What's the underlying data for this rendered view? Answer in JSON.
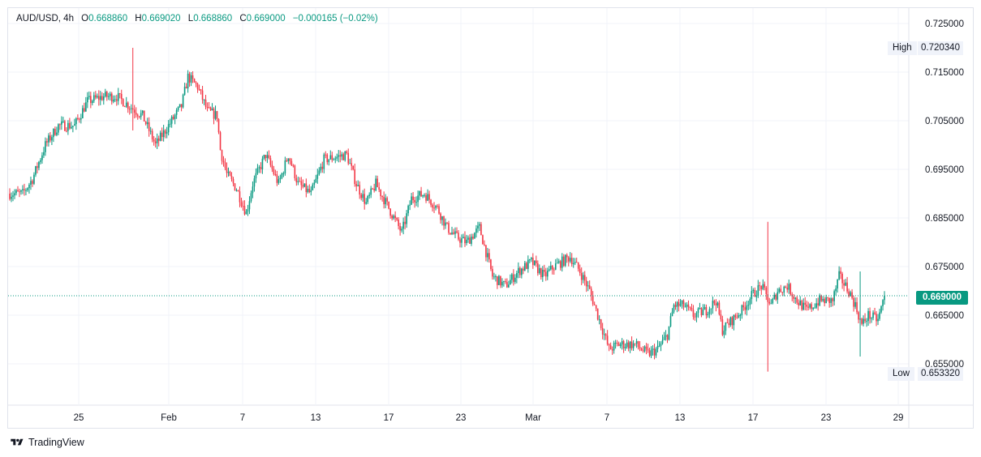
{
  "legend": {
    "symbol": "AUD/USD",
    "interval": "4h",
    "open_label": "O",
    "open": "0.668860",
    "high_label": "H",
    "high": "0.669020",
    "low_label": "L",
    "low": "0.668860",
    "close_label": "C",
    "close": "0.669000",
    "change": "−0.000165 (−0.02%)"
  },
  "price_axis": {
    "ticks": [
      "0.725000",
      "0.715000",
      "0.705000",
      "0.695000",
      "0.685000",
      "0.675000",
      "0.665000",
      "0.655000"
    ],
    "high_label": "High",
    "high_value": "0.720340",
    "low_label": "Low",
    "low_value": "0.653320",
    "last_price": "0.669000"
  },
  "time_axis": {
    "ticks": [
      "25",
      "Feb",
      "7",
      "13",
      "17",
      "23",
      "Mar",
      "7",
      "13",
      "17",
      "23",
      "29"
    ]
  },
  "branding": {
    "name": "TradingView"
  },
  "colors": {
    "up": "#089981",
    "down": "#f23645",
    "grid": "#f0f3fa",
    "last_price_line": "#089981"
  },
  "chart_data": {
    "type": "candlestick",
    "symbol": "AUD/USD",
    "interval": "4h",
    "ylim": [
      0.6508,
      0.7328
    ],
    "x_ticks": [
      "25",
      "Feb",
      "7",
      "13",
      "17",
      "23",
      "Mar",
      "7",
      "13",
      "17",
      "23",
      "29"
    ],
    "close_path": [
      [
        0,
        0.69
      ],
      [
        8,
        0.69
      ],
      [
        14,
        0.693
      ],
      [
        22,
        0.7
      ],
      [
        30,
        0.704
      ],
      [
        40,
        0.704
      ],
      [
        48,
        0.709
      ],
      [
        58,
        0.71
      ],
      [
        66,
        0.71
      ],
      [
        74,
        0.708
      ],
      [
        82,
        0.706
      ],
      [
        90,
        0.7
      ],
      [
        98,
        0.704
      ],
      [
        106,
        0.708
      ],
      [
        110,
        0.714
      ],
      [
        116,
        0.712
      ],
      [
        122,
        0.707
      ],
      [
        128,
        0.706
      ],
      [
        130,
        0.699
      ],
      [
        134,
        0.694
      ],
      [
        140,
        0.691
      ],
      [
        146,
        0.686
      ],
      [
        150,
        0.692
      ],
      [
        158,
        0.698
      ],
      [
        166,
        0.692
      ],
      [
        172,
        0.698
      ],
      [
        178,
        0.692
      ],
      [
        186,
        0.69
      ],
      [
        194,
        0.697
      ],
      [
        208,
        0.698
      ],
      [
        214,
        0.692
      ],
      [
        220,
        0.688
      ],
      [
        226,
        0.692
      ],
      [
        234,
        0.687
      ],
      [
        242,
        0.682
      ],
      [
        248,
        0.689
      ],
      [
        256,
        0.69
      ],
      [
        264,
        0.687
      ],
      [
        270,
        0.683
      ],
      [
        276,
        0.681
      ],
      [
        282,
        0.68
      ],
      [
        290,
        0.683
      ],
      [
        298,
        0.673
      ],
      [
        306,
        0.671
      ],
      [
        314,
        0.674
      ],
      [
        322,
        0.676
      ],
      [
        330,
        0.673
      ],
      [
        336,
        0.675
      ],
      [
        346,
        0.677
      ],
      [
        352,
        0.674
      ],
      [
        358,
        0.67
      ],
      [
        364,
        0.664
      ],
      [
        370,
        0.658
      ],
      [
        376,
        0.659
      ],
      [
        386,
        0.659
      ],
      [
        394,
        0.657
      ],
      [
        400,
        0.658
      ],
      [
        406,
        0.661
      ],
      [
        410,
        0.667
      ],
      [
        416,
        0.667
      ],
      [
        422,
        0.665
      ],
      [
        430,
        0.666
      ],
      [
        436,
        0.668
      ],
      [
        440,
        0.662
      ],
      [
        446,
        0.664
      ],
      [
        452,
        0.666
      ],
      [
        458,
        0.669
      ],
      [
        464,
        0.671
      ],
      [
        470,
        0.667
      ],
      [
        474,
        0.67
      ],
      [
        480,
        0.671
      ],
      [
        486,
        0.668
      ],
      [
        492,
        0.666
      ],
      [
        500,
        0.668
      ],
      [
        504,
        0.668
      ],
      [
        508,
        0.668
      ],
      [
        512,
        0.673
      ],
      [
        518,
        0.67
      ],
      [
        522,
        0.667
      ],
      [
        526,
        0.663
      ],
      [
        530,
        0.665
      ],
      [
        536,
        0.664
      ],
      [
        540,
        0.669
      ]
    ],
    "spikes": [
      {
        "bar": 76,
        "high": 0.72,
        "low": 0.703
      },
      {
        "bar": 468,
        "high": 0.6842,
        "low": 0.6534
      },
      {
        "bar": 525,
        "high": 0.674,
        "low": 0.6565
      }
    ]
  }
}
